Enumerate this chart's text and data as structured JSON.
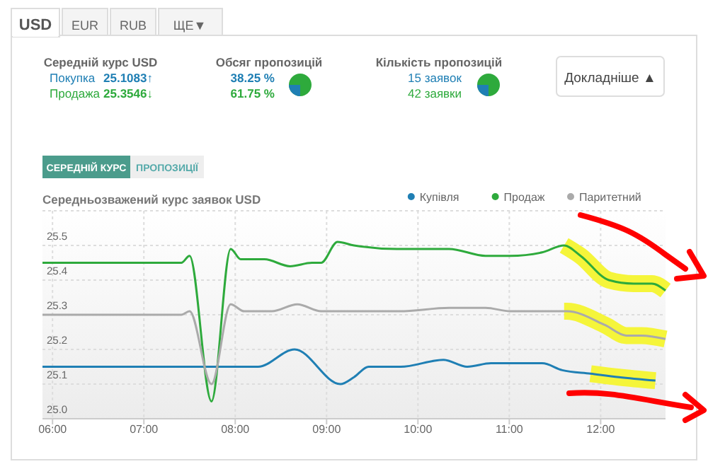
{
  "chart_data": [
    {
      "type": "other",
      "annotations": [
        "USD",
        "EUR",
        "RUB",
        "ЩЕ▼",
        "Середній курс USD",
        "Покупка",
        "25.1083↑",
        "Продажа",
        "25.3546↓",
        "Обсяг пропозицій",
        "38.25 %",
        "61.75 %",
        "Кількість пропозицій",
        "15 заявок",
        "42 заявки",
        "Докладніше ▲",
        "СЕРЕДНІЙ КУРС",
        "ПРОПОЗИЦІЇ"
      ]
    },
    {
      "type": "line",
      "title": "Середньозважений курс заявок USD",
      "xlim": [
        5.89,
        12.71
      ],
      "ylim": [
        25.0,
        25.6
      ],
      "xticks": [
        {
          "value": 6,
          "label": "06:00"
        },
        {
          "value": 7,
          "label": "07:00"
        },
        {
          "value": 8,
          "label": "08:00"
        },
        {
          "value": 9,
          "label": "09:00"
        },
        {
          "value": 10,
          "label": "10:00"
        },
        {
          "value": 11,
          "label": "11:00"
        },
        {
          "value": 12,
          "label": "12:00"
        }
      ],
      "yticks": [
        {
          "value": 25.0,
          "label": "25.0"
        },
        {
          "value": 25.1,
          "label": "25.1"
        },
        {
          "value": 25.2,
          "label": "25.2"
        },
        {
          "value": 25.3,
          "label": "25.3"
        },
        {
          "value": 25.4,
          "label": "25.4"
        },
        {
          "value": 25.5,
          "label": "25.5"
        }
      ],
      "grid": true,
      "legend": "top right",
      "marker": "none",
      "line_style": "solid",
      "series": [
        {
          "name": "Купівля",
          "color": "#1f7fb4",
          "x": [
            5.89,
            8.25,
            8.65,
            9.15,
            9.3,
            9.46,
            9.81,
            10.28,
            10.54,
            10.8,
            11.36,
            11.58,
            11.89,
            12.2,
            12.6
          ],
          "values": [
            25.15,
            25.15,
            25.2,
            25.1,
            25.12,
            25.15,
            25.15,
            25.17,
            25.15,
            25.16,
            25.16,
            25.14,
            25.13,
            25.12,
            25.11
          ]
        },
        {
          "name": "Продаж",
          "color": "#2eaa3c",
          "x": [
            5.89,
            7.41,
            7.5,
            7.74,
            7.95,
            8.06,
            8.32,
            8.6,
            8.84,
            8.94,
            9.12,
            9.3,
            9.77,
            10.08,
            10.34,
            10.74,
            11.01,
            11.36,
            11.6,
            11.78,
            12.09,
            12.36,
            12.45,
            12.56,
            12.71
          ],
          "values": [
            25.45,
            25.45,
            25.47,
            25.05,
            25.49,
            25.46,
            25.46,
            25.44,
            25.45,
            25.45,
            25.51,
            25.5,
            25.49,
            25.49,
            25.49,
            25.47,
            25.47,
            25.48,
            25.5,
            25.47,
            25.4,
            25.39,
            25.39,
            25.39,
            25.37
          ]
        },
        {
          "name": "Паритетний",
          "color": "#aaaaaa",
          "x": [
            5.89,
            7.41,
            7.5,
            7.74,
            7.95,
            8.1,
            8.4,
            8.68,
            8.94,
            9.3,
            9.8,
            10.34,
            10.74,
            11.01,
            11.6,
            11.63,
            12.05,
            12.28,
            12.45,
            12.71
          ],
          "values": [
            25.3,
            25.3,
            25.31,
            25.1,
            25.33,
            25.31,
            25.31,
            25.33,
            25.31,
            25.31,
            25.31,
            25.32,
            25.32,
            25.31,
            25.31,
            25.31,
            25.27,
            25.24,
            25.24,
            25.23
          ]
        }
      ]
    }
  ]
}
